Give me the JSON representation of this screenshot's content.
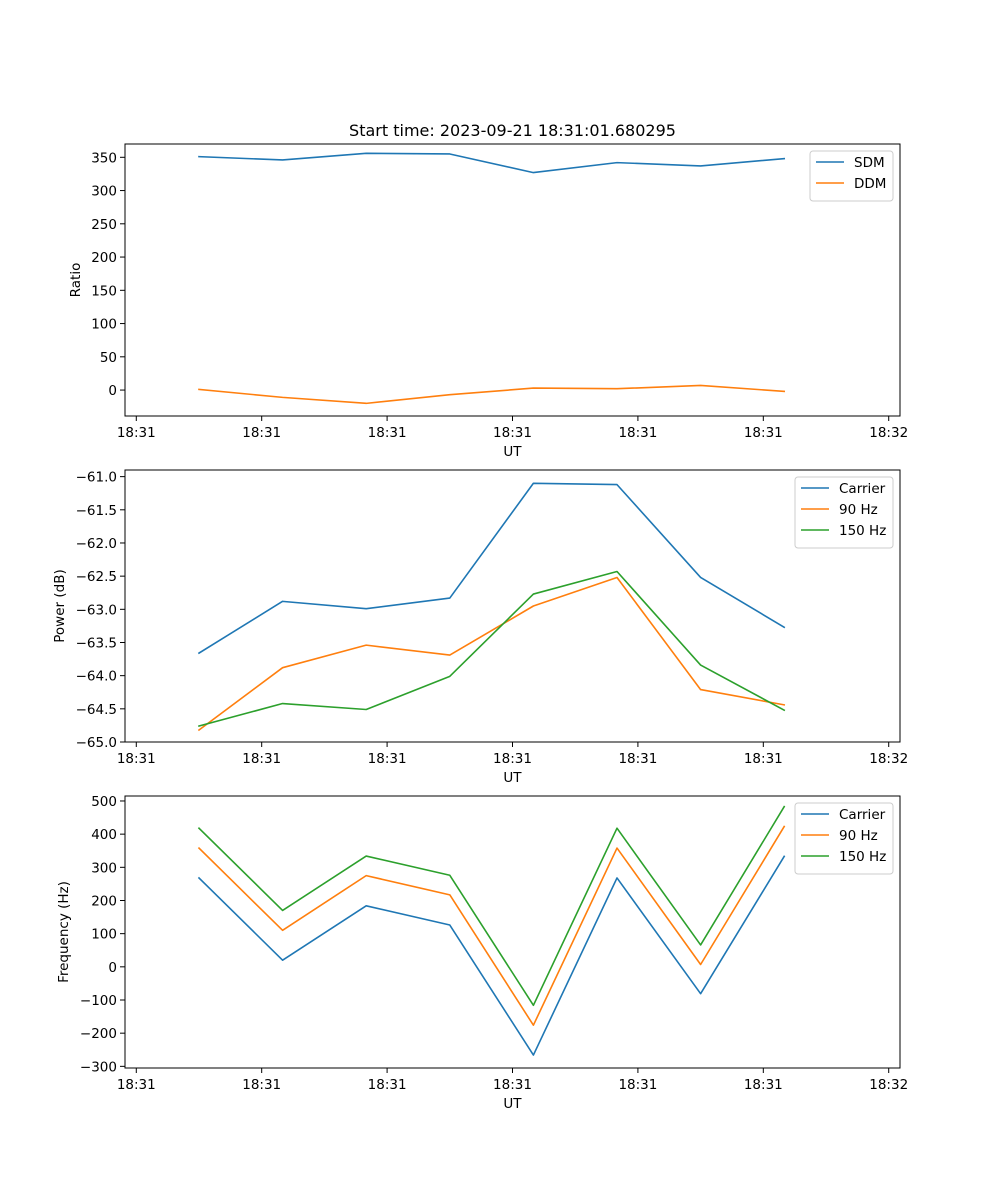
{
  "colors": {
    "blue": "#1f77b4",
    "orange": "#ff7f0e",
    "green": "#2ca02c"
  },
  "chart_data": [
    {
      "type": "line",
      "title": "Start time: 2023-09-21 18:31:01.680295",
      "xlabel": "UT",
      "ylabel": "Ratio",
      "xlim": [
        -0.135,
        9.135
      ],
      "ylim": [
        -39,
        370
      ],
      "x": [
        0.75,
        1.75,
        2.75,
        3.75,
        4.75,
        5.75,
        6.75,
        7.75
      ],
      "x_ticks": [
        0,
        1.5,
        3,
        4.5,
        6,
        7.5,
        9
      ],
      "x_tick_labels": [
        "18:31",
        "18:31",
        "18:31",
        "18:31",
        "18:31",
        "18:31",
        "18:32"
      ],
      "y_ticks": [
        0,
        50,
        100,
        150,
        200,
        250,
        300,
        350
      ],
      "y_tick_labels": [
        "0",
        "50",
        "100",
        "150",
        "200",
        "250",
        "300",
        "350"
      ],
      "legend_position": "top-right",
      "series": [
        {
          "name": "SDM",
          "color": "#1f77b4",
          "values": [
            351,
            346,
            356,
            355,
            327,
            342,
            337,
            348
          ]
        },
        {
          "name": "DDM",
          "color": "#ff7f0e",
          "values": [
            1,
            -11,
            -20,
            -7,
            3,
            2,
            7,
            -2
          ]
        }
      ]
    },
    {
      "type": "line",
      "title": "",
      "xlabel": "UT",
      "ylabel": "Power (dB)",
      "xlim": [
        -0.135,
        9.135
      ],
      "ylim": [
        -65.0,
        -60.9
      ],
      "x": [
        0.75,
        1.75,
        2.75,
        3.75,
        4.75,
        5.75,
        6.75,
        7.75
      ],
      "x_ticks": [
        0,
        1.5,
        3,
        4.5,
        6,
        7.5,
        9
      ],
      "x_tick_labels": [
        "18:31",
        "18:31",
        "18:31",
        "18:31",
        "18:31",
        "18:31",
        "18:32"
      ],
      "y_ticks": [
        -65.0,
        -64.5,
        -64.0,
        -63.5,
        -63.0,
        -62.5,
        -62.0,
        -61.5,
        -61.0
      ],
      "y_tick_labels": [
        "−65.0",
        "−64.5",
        "−64.0",
        "−63.5",
        "−63.0",
        "−62.5",
        "−62.0",
        "−61.5",
        "−61.0"
      ],
      "legend_position": "top-right",
      "series": [
        {
          "name": "Carrier",
          "color": "#1f77b4",
          "values": [
            -63.66,
            -62.88,
            -62.99,
            -62.83,
            -61.1,
            -61.12,
            -62.52,
            -63.27
          ]
        },
        {
          "name": "90 Hz",
          "color": "#ff7f0e",
          "values": [
            -64.82,
            -63.88,
            -63.54,
            -63.69,
            -62.95,
            -62.52,
            -64.21,
            -64.44
          ]
        },
        {
          "name": "150 Hz",
          "color": "#2ca02c",
          "values": [
            -64.76,
            -64.42,
            -64.51,
            -64.01,
            -62.77,
            -62.43,
            -63.84,
            -64.52
          ]
        }
      ]
    },
    {
      "type": "line",
      "title": "",
      "xlabel": "UT",
      "ylabel": "Frequency (Hz)",
      "xlim": [
        -0.135,
        9.135
      ],
      "ylim": [
        -305,
        515
      ],
      "x": [
        0.75,
        1.75,
        2.75,
        3.75,
        4.75,
        5.75,
        6.75,
        7.75
      ],
      "x_ticks": [
        0,
        1.5,
        3,
        4.5,
        6,
        7.5,
        9
      ],
      "x_tick_labels": [
        "18:31",
        "18:31",
        "18:31",
        "18:31",
        "18:31",
        "18:31",
        "18:32"
      ],
      "y_ticks": [
        -300,
        -200,
        -100,
        0,
        100,
        200,
        300,
        400,
        500
      ],
      "y_tick_labels": [
        "−300",
        "−200",
        "−100",
        "0",
        "100",
        "200",
        "300",
        "400",
        "500"
      ],
      "legend_position": "top-right",
      "series": [
        {
          "name": "Carrier",
          "color": "#1f77b4",
          "values": [
            268,
            20,
            184,
            126,
            -266,
            268,
            -81,
            333
          ]
        },
        {
          "name": "90 Hz",
          "color": "#ff7f0e",
          "values": [
            358,
            110,
            275,
            217,
            -176,
            358,
            7,
            423
          ]
        },
        {
          "name": "150 Hz",
          "color": "#2ca02c",
          "values": [
            418,
            170,
            334,
            276,
            -116,
            418,
            66,
            483
          ]
        }
      ]
    }
  ]
}
